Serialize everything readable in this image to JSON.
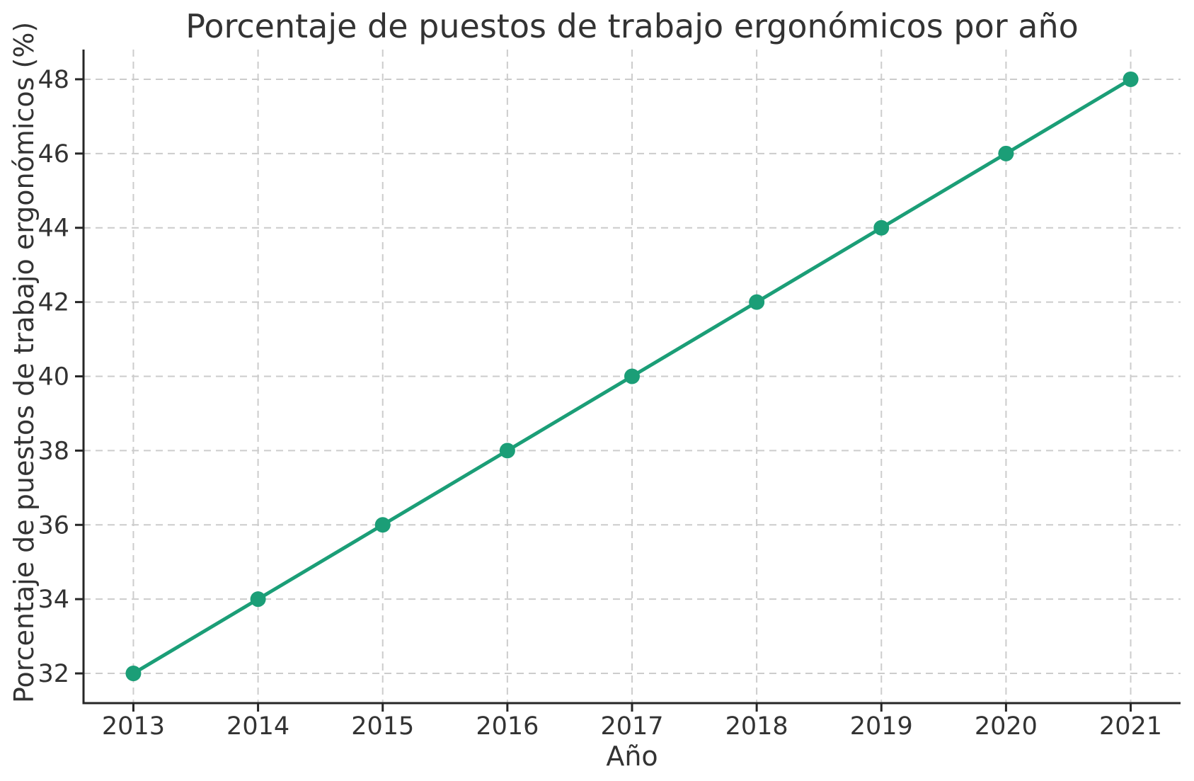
{
  "chart_data": {
    "type": "line",
    "title": "Porcentaje de puestos de trabajo ergonómicos por año",
    "xlabel": "Año",
    "ylabel": "Porcentaje de puestos de trabajo ergonómicos (%)",
    "x": [
      2013,
      2014,
      2015,
      2016,
      2017,
      2018,
      2019,
      2020,
      2021
    ],
    "values": [
      32,
      34,
      36,
      38,
      40,
      42,
      44,
      46,
      48
    ],
    "xtick_labels": [
      "2013",
      "2014",
      "2015",
      "2016",
      "2017",
      "2018",
      "2019",
      "2020",
      "2021"
    ],
    "ytick_values": [
      32,
      34,
      36,
      38,
      40,
      42,
      44,
      46,
      48
    ],
    "ytick_labels": [
      "32",
      "34",
      "36",
      "38",
      "40",
      "42",
      "44",
      "46",
      "48"
    ],
    "xlim": [
      2012.6,
      2021.4
    ],
    "ylim": [
      31.2,
      48.8
    ],
    "grid": true,
    "grid_style": "dashed",
    "legend_position": "none",
    "marker": "circle",
    "colors": {
      "line": "#1b9e77",
      "marker": "#1b9e77",
      "grid": "#cccccc",
      "axis": "#262626",
      "text": "#333333",
      "background": "#ffffff"
    }
  }
}
